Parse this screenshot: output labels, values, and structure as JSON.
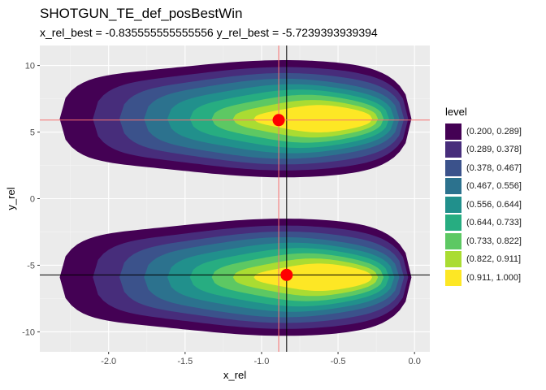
{
  "title": "SHOTGUN_TE_def_posBestWin",
  "subtitle": "x_rel_best = -0.835555555555556 y_rel_best = -5.7239393939394",
  "chart_data": {
    "type": "filled-contour",
    "xlabel": "x_rel",
    "ylabel": "y_rel",
    "xlim": [
      -2.45,
      0.1
    ],
    "ylim": [
      -11.5,
      11.5
    ],
    "x_ticks": [
      -2.0,
      -1.5,
      -1.0,
      -0.5,
      0.0
    ],
    "x_tick_labels": [
      "-2.0",
      "-1.5",
      "-1.0",
      "-0.5",
      "0.0"
    ],
    "y_ticks": [
      -10,
      -5,
      0,
      5,
      10
    ],
    "y_tick_labels": [
      "-10",
      "-5",
      "0",
      "5",
      "10"
    ],
    "legend_title": "level",
    "legend_position": "right",
    "levels": [
      {
        "label": "(0.200, 0.289]",
        "color": "#440154"
      },
      {
        "label": "(0.289, 0.378]",
        "color": "#472D7B"
      },
      {
        "label": "(0.378, 0.467]",
        "color": "#3B528B"
      },
      {
        "label": "(0.467, 0.556]",
        "color": "#2C728E"
      },
      {
        "label": "(0.556, 0.644]",
        "color": "#21908C"
      },
      {
        "label": "(0.644, 0.733]",
        "color": "#27AD81"
      },
      {
        "label": "(0.733, 0.822]",
        "color": "#5DC863"
      },
      {
        "label": "(0.822, 0.911]",
        "color": "#AADC32"
      },
      {
        "label": "(0.911, 1.000]",
        "color": "#FDE725"
      }
    ],
    "blobs": [
      {
        "name": "upper",
        "peak_x": -0.85,
        "peak_y": 5.9,
        "x_min": -2.32,
        "x_max": -0.02,
        "y_center": 6.0
      },
      {
        "name": "lower",
        "peak_x": -0.85,
        "peak_y": -5.8,
        "x_min": -2.32,
        "x_max": -0.02,
        "y_center": -5.9
      }
    ],
    "points": [
      {
        "x": -0.888,
        "y": 5.9,
        "color": "#FF0000"
      },
      {
        "x": -0.836,
        "y": -5.724,
        "color": "#FF0000"
      }
    ],
    "vlines": [
      {
        "x": -0.888,
        "color": "#F87171"
      },
      {
        "x": -0.836,
        "color": "#000000"
      }
    ],
    "hlines": [
      {
        "y": 5.9,
        "color": "#F87171"
      },
      {
        "y": -5.724,
        "color": "#000000"
      }
    ]
  }
}
